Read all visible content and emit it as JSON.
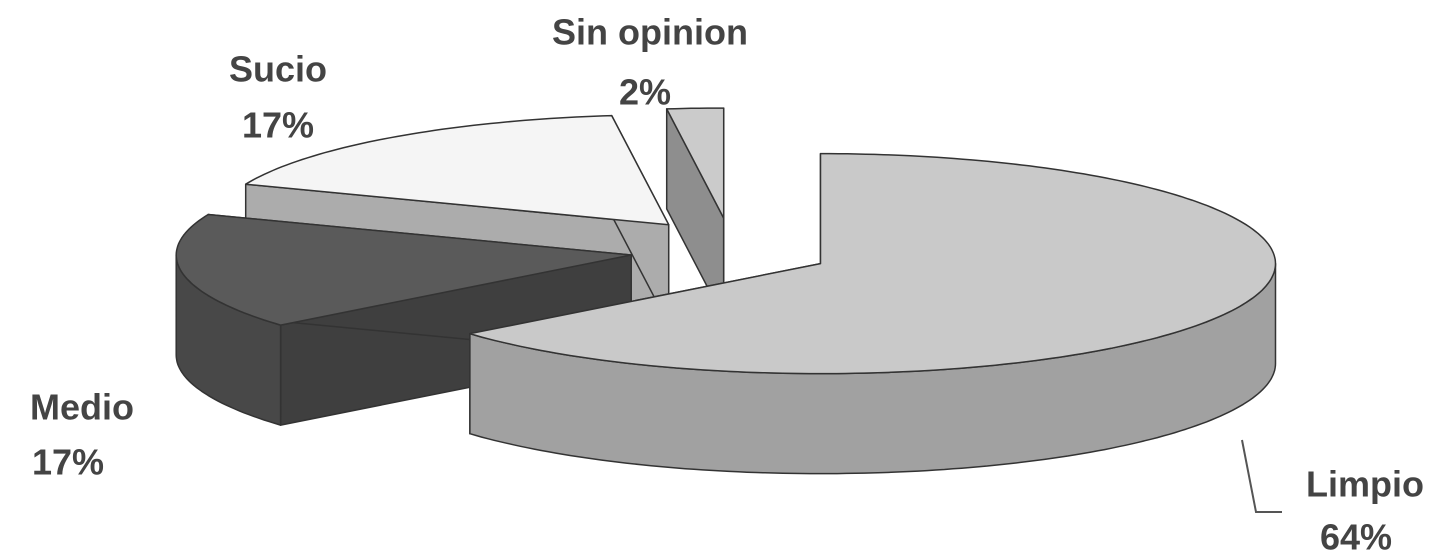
{
  "chart_data": {
    "type": "pie",
    "categories": [
      "Limpio",
      "Medio",
      "Sucio",
      "Sin opinion"
    ],
    "values": [
      64,
      17,
      17,
      2
    ],
    "value_labels": [
      "64%",
      "17%",
      "17%",
      "2%"
    ],
    "colors": [
      "#c9c9c9",
      "#5a5a5a",
      "#f5f5f5",
      "#cbcbcb"
    ]
  }
}
